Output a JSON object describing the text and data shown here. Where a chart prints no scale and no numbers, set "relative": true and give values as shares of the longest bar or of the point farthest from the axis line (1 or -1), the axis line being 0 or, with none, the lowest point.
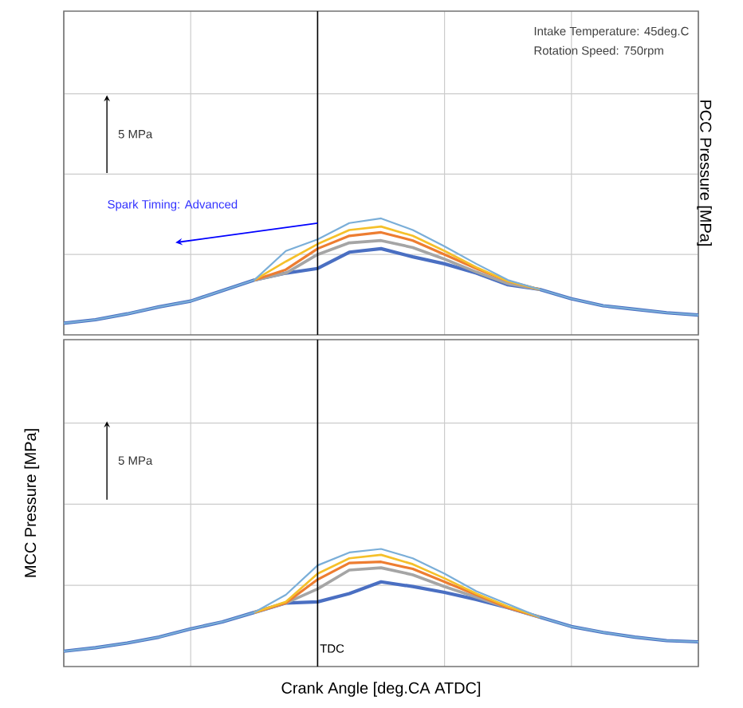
{
  "chart_data": [
    {
      "type": "line",
      "relative": true,
      "ylabel": "PCC Pressure [MPa]",
      "tick_labels": false,
      "grid": true,
      "categories": [
        null,
        null,
        null,
        null,
        null,
        null,
        null,
        null,
        null,
        null,
        null,
        null,
        null,
        null,
        null,
        null,
        null,
        null,
        null,
        null,
        null
      ],
      "series": [
        {
          "color": "#4a6fc2",
          "values": [
            0.1,
            0.13,
            0.18,
            0.24,
            0.29,
            0.38,
            0.47,
            0.53,
            0.57,
            0.71,
            0.74,
            0.67,
            0.61,
            0.53,
            0.43,
            0.39,
            0.31,
            0.25,
            0.22,
            0.19,
            0.17
          ]
        },
        {
          "color": "#a5a5a5",
          "values": [
            null,
            null,
            null,
            null,
            null,
            null,
            0.47,
            0.53,
            0.69,
            0.79,
            0.81,
            0.75,
            0.65,
            0.54,
            0.44,
            0.39,
            null,
            null,
            null,
            null,
            null
          ]
        },
        {
          "color": "#ed7d31",
          "values": [
            null,
            null,
            null,
            null,
            null,
            null,
            0.47,
            0.56,
            0.74,
            0.85,
            0.88,
            0.81,
            0.69,
            0.57,
            0.46,
            0.39,
            null,
            null,
            null,
            null,
            null
          ]
        },
        {
          "color": "#f5c02a",
          "values": [
            null,
            null,
            null,
            null,
            null,
            null,
            0.47,
            0.63,
            0.78,
            0.9,
            0.93,
            0.85,
            0.72,
            0.58,
            0.46,
            0.39,
            null,
            null,
            null,
            null,
            null
          ]
        },
        {
          "color": "#7aaed8",
          "values": [
            0.1,
            0.13,
            0.18,
            0.24,
            0.29,
            0.38,
            0.47,
            0.72,
            0.82,
            0.96,
            1.0,
            0.9,
            0.76,
            0.61,
            0.47,
            0.39,
            0.31,
            0.25,
            0.22,
            0.19,
            0.17
          ]
        }
      ],
      "annotations": [
        "Intake Temperature: 45deg.C",
        "Rotation Speed: 750rpm",
        "5 MPa",
        "Spark Timing: Advanced"
      ]
    },
    {
      "type": "line",
      "relative": true,
      "ylabel": "MCC Pressure [MPa]",
      "xlabel": "Crank Angle [deg.CA ATDC]",
      "tick_labels": false,
      "grid": true,
      "categories": [
        null,
        null,
        null,
        null,
        null,
        null,
        null,
        null,
        null,
        null,
        null,
        null,
        null,
        null,
        null,
        null,
        null,
        null,
        null,
        null,
        null
      ],
      "series": [
        {
          "color": "#4a6fc2",
          "values": [
            0.13,
            0.16,
            0.2,
            0.25,
            0.32,
            0.38,
            0.46,
            0.54,
            0.55,
            0.62,
            0.72,
            0.68,
            0.63,
            0.57,
            0.5,
            0.42,
            0.34,
            0.29,
            0.25,
            0.22,
            0.21
          ]
        },
        {
          "color": "#a5a5a5",
          "values": [
            null,
            null,
            null,
            null,
            null,
            null,
            0.46,
            0.54,
            0.66,
            0.82,
            0.84,
            0.78,
            0.68,
            0.59,
            0.5,
            0.42,
            null,
            null,
            null,
            null,
            null
          ]
        },
        {
          "color": "#ed7d31",
          "values": [
            null,
            null,
            null,
            null,
            null,
            null,
            0.46,
            0.54,
            0.74,
            0.88,
            0.89,
            0.83,
            0.72,
            0.61,
            0.5,
            0.42,
            null,
            null,
            null,
            null,
            null
          ]
        },
        {
          "color": "#f5c02a",
          "values": [
            null,
            null,
            null,
            null,
            null,
            null,
            0.46,
            0.55,
            0.79,
            0.92,
            0.95,
            0.87,
            0.75,
            0.62,
            0.51,
            0.42,
            null,
            null,
            null,
            null,
            null
          ]
        },
        {
          "color": "#7aaed8",
          "values": [
            0.13,
            0.16,
            0.2,
            0.25,
            0.32,
            0.38,
            0.46,
            0.61,
            0.86,
            0.97,
            1.0,
            0.92,
            0.79,
            0.64,
            0.53,
            0.42,
            0.34,
            0.29,
            0.25,
            0.22,
            0.21
          ]
        }
      ],
      "annotations": [
        "5 MPa",
        "TDC"
      ]
    }
  ]
}
